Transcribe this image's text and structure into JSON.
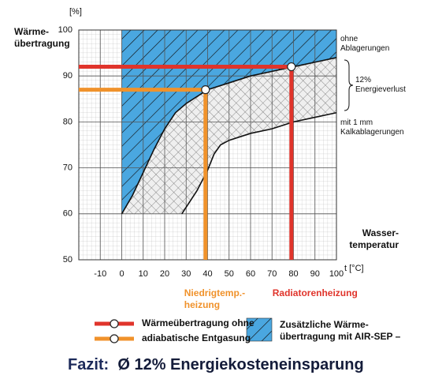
{
  "chart_data": {
    "type": "line",
    "y_label": "Wärme-übertragung",
    "y_unit": "[%]",
    "x_label": "Wasser-temperatur",
    "x_unit": "t [°C]",
    "xlim": [
      -20,
      100
    ],
    "xticks": [
      -10,
      0,
      10,
      20,
      30,
      40,
      50,
      60,
      70,
      80,
      90,
      100
    ],
    "ylim": [
      50,
      100
    ],
    "yticks": [
      50,
      60,
      70,
      80,
      90,
      100
    ],
    "grid": true,
    "series": [
      {
        "name": "ohne Ablagerungen",
        "color": "#111111",
        "x": [
          0,
          5,
          10,
          15,
          20,
          25,
          30,
          40,
          50,
          60,
          70,
          80,
          90,
          100
        ],
        "values": [
          60,
          64,
          69,
          74,
          78.5,
          82,
          84,
          87,
          88.5,
          90,
          91,
          92,
          93,
          94
        ]
      },
      {
        "name": "mit 1 mm Kalkablagerungen",
        "color": "#111111",
        "x": [
          28,
          35,
          40,
          43,
          46,
          50,
          60,
          70,
          80,
          90,
          100
        ],
        "values": [
          60,
          65,
          69.5,
          73,
          75,
          76,
          77.5,
          78.5,
          80,
          81,
          82
        ]
      }
    ],
    "band_label": "12% Energieverlust",
    "markers": [
      {
        "label": "Radiatorenheizung",
        "color": "#e0342b",
        "x": 79,
        "y": 92
      },
      {
        "label": "Niedrigtemp.-heizung",
        "color": "#f0922b",
        "x": 39,
        "y": 87
      }
    ],
    "legend": [
      {
        "text": "Wärmeübertragung ohne",
        "color": "#e0342b"
      },
      {
        "text": "adiabatische Entgasung",
        "color": "#f0922b"
      }
    ],
    "area_color": "#4aa7e0",
    "area_label": "Zusätzliche Wärme-übertragung mit AIR-SEP –",
    "conclusion_label": "Fazit:",
    "conclusion": "Ø 12% Energiekosteneinsparung"
  }
}
